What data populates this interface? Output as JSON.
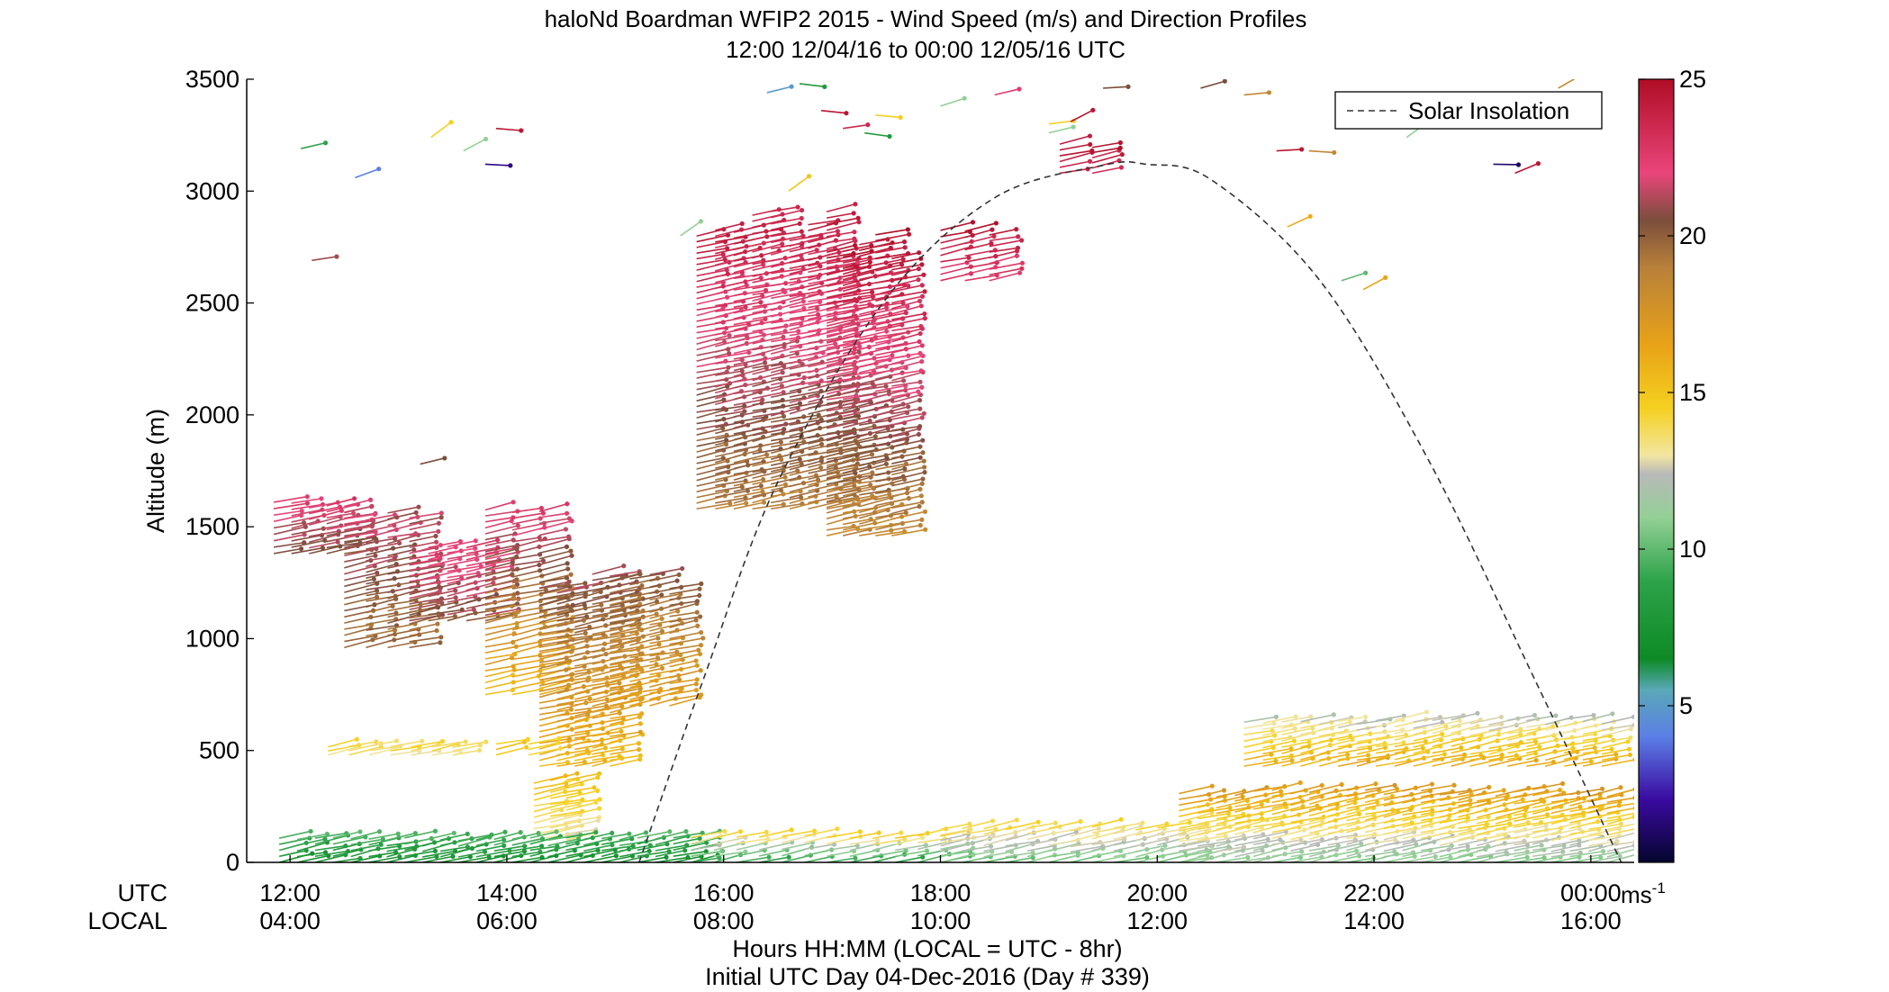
{
  "chart_data": {
    "type": "wind-barb-profile",
    "title": "haloNd Boardman WFIP2 2015 - Wind Speed (m/s) and Direction Profiles",
    "subtitle": "12:00 12/04/16 to 00:00 12/05/16  UTC",
    "ylabel": "Altitude (m)",
    "xlabel": "Hours HH:MM  (LOCAL = UTC - 8hr)",
    "xlabel2": "Initial UTC Day 04-Dec-2016 (Day # 339)",
    "row_label_utc": "UTC",
    "row_label_local": "LOCAL",
    "ylim": [
      0,
      3500
    ],
    "xlim_hours_utc": [
      11.6,
      24.4
    ],
    "y_ticks": [
      0,
      500,
      1000,
      1500,
      2000,
      2500,
      3000,
      3500
    ],
    "x_ticks_utc": [
      "12:00",
      "14:00",
      "16:00",
      "18:00",
      "20:00",
      "22:00",
      "00:00"
    ],
    "x_ticks_local": [
      "04:00",
      "06:00",
      "08:00",
      "10:00",
      "12:00",
      "14:00",
      "16:00"
    ],
    "x_tick_hours": [
      12,
      14,
      16,
      18,
      20,
      22,
      24
    ],
    "legend": {
      "entries": [
        "Solar Insolation"
      ],
      "placement": "top-right"
    },
    "colorbar": {
      "unit": "ms",
      "unit_sup": "-1",
      "range": [
        0,
        25
      ],
      "ticks": [
        5,
        10,
        15,
        20,
        25
      ],
      "stops": [
        {
          "v": 0,
          "color": "#05052e"
        },
        {
          "v": 2,
          "color": "#3a0aa0"
        },
        {
          "v": 4,
          "color": "#5b7fe6"
        },
        {
          "v": 5.5,
          "color": "#5aa8b8"
        },
        {
          "v": 6.5,
          "color": "#0d8a25"
        },
        {
          "v": 9,
          "color": "#2ea34a"
        },
        {
          "v": 11,
          "color": "#93d095"
        },
        {
          "v": 12.4,
          "color": "#b9b9b9"
        },
        {
          "v": 13,
          "color": "#f2e6a0"
        },
        {
          "v": 14.5,
          "color": "#f5d020"
        },
        {
          "v": 16.5,
          "color": "#e8a317"
        },
        {
          "v": 19,
          "color": "#b8803a"
        },
        {
          "v": 20.5,
          "color": "#7b4e3c"
        },
        {
          "v": 22,
          "color": "#e9457b"
        },
        {
          "v": 25,
          "color": "#b00d25"
        }
      ]
    },
    "solar_insolation": {
      "style": "dashed",
      "points": [
        [
          15.22,
          0
        ],
        [
          15.8,
          800
        ],
        [
          16.5,
          1700
        ],
        [
          17.5,
          2520
        ],
        [
          18.5,
          2970
        ],
        [
          19.5,
          3115
        ],
        [
          19.9,
          3120
        ],
        [
          20.5,
          3050
        ],
        [
          21.5,
          2600
        ],
        [
          22.5,
          1800
        ],
        [
          23.5,
          800
        ],
        [
          24.28,
          0
        ]
      ]
    },
    "barb_blocks": [
      {
        "t0": 11.85,
        "t1": 12.5,
        "n": 5,
        "ybot": 1380,
        "ytop": 1610,
        "spd_bot": 20.5,
        "spd_top": 22.5
      },
      {
        "t0": 12.5,
        "t1": 13.1,
        "n": 4,
        "ybot": 960,
        "ytop": 1570,
        "spd_bot": 19.5,
        "spd_top": 21.5
      },
      {
        "t0": 13.1,
        "t1": 13.8,
        "n": 5,
        "ybot": 1080,
        "ytop": 1420,
        "spd_bot": 20.5,
        "spd_top": 22.5
      },
      {
        "t0": 13.8,
        "t1": 14.3,
        "n": 3,
        "ybot": 750,
        "ytop": 1620,
        "spd_bot": 15.5,
        "spd_top": 22.5
      },
      {
        "t0": 14.3,
        "t1": 14.95,
        "n": 5,
        "ybot": 430,
        "ytop": 1330,
        "spd_bot": 15.5,
        "spd_top": 20.8
      },
      {
        "t0": 14.95,
        "t1": 15.5,
        "n": 4,
        "ybot": 700,
        "ytop": 1290,
        "spd_bot": 16.5,
        "spd_top": 20.5
      },
      {
        "t0": 15.75,
        "t1": 16.95,
        "n": 8,
        "ybot": 1580,
        "ytop": 2930,
        "spd_bot": 19.0,
        "spd_top": 24.0
      },
      {
        "t0": 16.95,
        "t1": 17.55,
        "n": 5,
        "ybot": 1460,
        "ytop": 2860,
        "spd_bot": 18.5,
        "spd_top": 24.5
      },
      {
        "t0": 12.35,
        "t1": 13.5,
        "n": 7,
        "ybot": 480,
        "ytop": 520,
        "spd_bot": 13.5,
        "spd_top": 14.0
      },
      {
        "t0": 13.9,
        "t1": 14.2,
        "n": 2,
        "ybot": 480,
        "ytop": 530,
        "spd_bot": 14.5,
        "spd_top": 15.0
      },
      {
        "t0": 14.25,
        "t1": 14.55,
        "n": 3,
        "ybot": 100,
        "ytop": 370,
        "spd_bot": 13.0,
        "spd_top": 15.5
      },
      {
        "t0": 11.9,
        "t1": 15.7,
        "n": 24,
        "ybot": 0,
        "ytop": 110,
        "spd_bot": 7.5,
        "spd_top": 9.5
      },
      {
        "t0": 15.7,
        "t1": 18.0,
        "n": 12,
        "ybot": 0,
        "ytop": 120,
        "spd_bot": 9.0,
        "spd_top": 14.5
      },
      {
        "t0": 18.0,
        "t1": 20.2,
        "n": 12,
        "ybot": 0,
        "ytop": 160,
        "spd_bot": 10.5,
        "spd_top": 14.0
      },
      {
        "t0": 20.2,
        "t1": 24.15,
        "n": 24,
        "ybot": 0,
        "ytop": 330,
        "spd_bot": 11.0,
        "spd_top": 17.0
      },
      {
        "t0": 20.8,
        "t1": 24.1,
        "n": 20,
        "ybot": 430,
        "ytop": 640,
        "spd_bot": 16.0,
        "spd_top": 12.5
      },
      {
        "t0": 18.0,
        "t1": 18.45,
        "n": 3,
        "ybot": 2600,
        "ytop": 2830,
        "spd_bot": 22.5,
        "spd_top": 24.5
      },
      {
        "t0": 19.1,
        "t1": 19.4,
        "n": 2,
        "ybot": 3080,
        "ytop": 3210,
        "spd_bot": 23.5,
        "spd_top": 24.5
      }
    ],
    "scattered_barbs": [
      [
        12.1,
        3190,
        9
      ],
      [
        12.6,
        3060,
        4
      ],
      [
        12.2,
        2690,
        21
      ],
      [
        13.3,
        3240,
        14.5
      ],
      [
        13.6,
        3180,
        11
      ],
      [
        13.8,
        3120,
        1.5
      ],
      [
        13.2,
        1780,
        20.5
      ],
      [
        13.9,
        3280,
        24.5
      ],
      [
        15.6,
        2800,
        11
      ],
      [
        16.4,
        3440,
        5
      ],
      [
        16.7,
        3480,
        8
      ],
      [
        16.9,
        3360,
        24.5
      ],
      [
        17.1,
        3280,
        23.5
      ],
      [
        17.3,
        3260,
        8
      ],
      [
        17.4,
        3340,
        14.5
      ],
      [
        18.0,
        3380,
        11
      ],
      [
        18.5,
        3430,
        22.5
      ],
      [
        19.0,
        3300,
        14.5
      ],
      [
        19.0,
        3260,
        11
      ],
      [
        19.2,
        3310,
        24.5
      ],
      [
        19.5,
        3460,
        20.5
      ],
      [
        20.4,
        3460,
        20.5
      ],
      [
        20.8,
        3430,
        18.5
      ],
      [
        21.1,
        3180,
        24.5
      ],
      [
        21.4,
        3180,
        18.5
      ],
      [
        21.7,
        2600,
        10
      ],
      [
        21.9,
        2560,
        16.5
      ],
      [
        21.2,
        2840,
        16
      ],
      [
        22.3,
        3240,
        11
      ],
      [
        23.1,
        3120,
        1
      ],
      [
        23.3,
        3080,
        24.5
      ],
      [
        23.7,
        3460,
        18.5
      ],
      [
        16.6,
        3000,
        15
      ]
    ]
  }
}
